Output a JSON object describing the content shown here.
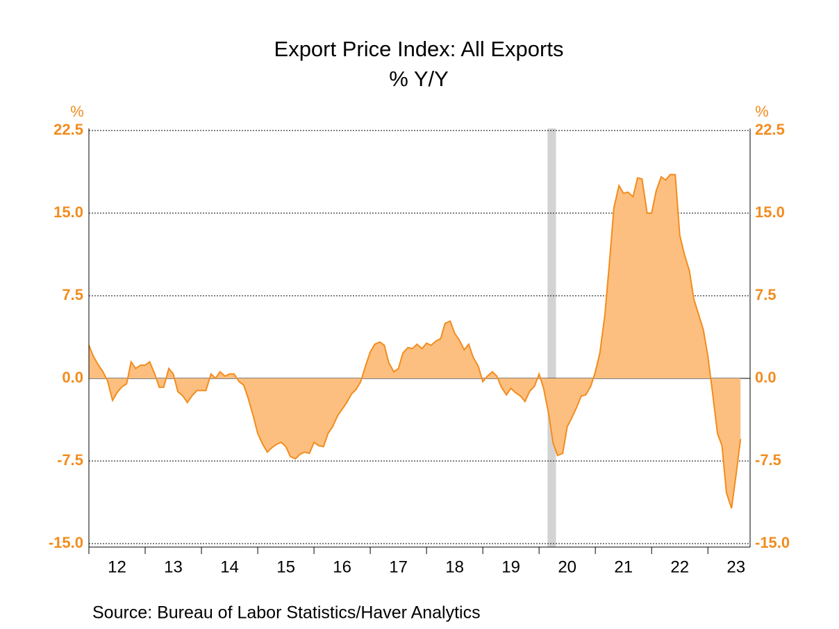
{
  "chart_data": {
    "type": "area",
    "title": "Export Price Index: All Exports",
    "subtitle": "% Y/Y",
    "y_label": "%",
    "y2_label": "%",
    "source": "Source:  Bureau of Labor Statistics/Haver Analytics",
    "x": [
      2012.0,
      2012.08,
      2012.17,
      2012.25,
      2012.33,
      2012.42,
      2012.5,
      2012.58,
      2012.67,
      2012.75,
      2012.83,
      2012.92,
      2013.0,
      2013.08,
      2013.17,
      2013.25,
      2013.33,
      2013.42,
      2013.5,
      2013.58,
      2013.67,
      2013.75,
      2013.83,
      2013.92,
      2014.0,
      2014.08,
      2014.17,
      2014.25,
      2014.33,
      2014.42,
      2014.5,
      2014.58,
      2014.67,
      2014.75,
      2014.83,
      2014.92,
      2015.0,
      2015.08,
      2015.17,
      2015.25,
      2015.33,
      2015.42,
      2015.5,
      2015.58,
      2015.67,
      2015.75,
      2015.83,
      2015.92,
      2016.0,
      2016.08,
      2016.17,
      2016.25,
      2016.33,
      2016.42,
      2016.5,
      2016.58,
      2016.67,
      2016.75,
      2016.83,
      2016.92,
      2017.0,
      2017.08,
      2017.17,
      2017.25,
      2017.33,
      2017.42,
      2017.5,
      2017.58,
      2017.67,
      2017.75,
      2017.83,
      2017.92,
      2018.0,
      2018.08,
      2018.17,
      2018.25,
      2018.33,
      2018.42,
      2018.5,
      2018.58,
      2018.67,
      2018.75,
      2018.83,
      2018.92,
      2019.0,
      2019.08,
      2019.17,
      2019.25,
      2019.33,
      2019.42,
      2019.5,
      2019.58,
      2019.67,
      2019.75,
      2019.83,
      2019.92,
      2020.0,
      2020.08,
      2020.17,
      2020.25,
      2020.33,
      2020.42,
      2020.5,
      2020.58,
      2020.67,
      2020.75,
      2020.83,
      2020.92,
      2021.0,
      2021.08,
      2021.17,
      2021.25,
      2021.33,
      2021.42,
      2021.5,
      2021.58,
      2021.67,
      2021.75,
      2021.83,
      2021.92,
      2022.0,
      2022.08,
      2022.17,
      2022.25,
      2022.33,
      2022.42,
      2022.5,
      2022.58,
      2022.67,
      2022.75,
      2022.83,
      2022.92,
      2023.0,
      2023.08,
      2023.17,
      2023.25,
      2023.33,
      2023.42,
      2023.5,
      2023.58
    ],
    "values": [
      3.0,
      2.0,
      1.2,
      0.6,
      -0.2,
      -2.0,
      -1.3,
      -0.8,
      -0.5,
      1.5,
      0.9,
      1.2,
      1.2,
      1.5,
      0.4,
      -0.8,
      -0.8,
      0.9,
      0.4,
      -1.2,
      -1.6,
      -2.2,
      -1.6,
      -1.1,
      -1.1,
      -1.1,
      0.4,
      0.0,
      0.6,
      0.2,
      0.4,
      0.4,
      -0.3,
      -0.6,
      -1.8,
      -3.4,
      -5.0,
      -5.9,
      -6.7,
      -6.3,
      -6.0,
      -5.8,
      -6.2,
      -7.1,
      -7.3,
      -6.9,
      -6.7,
      -6.8,
      -5.8,
      -6.1,
      -6.2,
      -5.0,
      -4.4,
      -3.4,
      -2.8,
      -2.2,
      -1.4,
      -1.0,
      -0.3,
      1.2,
      2.4,
      3.1,
      3.3,
      3.0,
      1.4,
      0.6,
      0.9,
      2.3,
      2.8,
      2.7,
      3.1,
      2.7,
      3.2,
      3.0,
      3.4,
      3.6,
      5.0,
      5.2,
      4.1,
      3.5,
      2.6,
      3.1,
      1.9,
      1.1,
      -0.3,
      0.2,
      0.6,
      0.2,
      -0.8,
      -1.5,
      -0.9,
      -1.3,
      -1.6,
      -2.1,
      -1.2,
      -0.7,
      0.4,
      -0.9,
      -3.2,
      -5.9,
      -7.0,
      -6.8,
      -4.4,
      -3.6,
      -2.6,
      -1.6,
      -1.5,
      -0.7,
      0.6,
      2.3,
      5.8,
      10.5,
      15.5,
      17.5,
      16.8,
      16.9,
      16.5,
      18.2,
      18.1,
      15.0,
      15.0,
      17.0,
      18.3,
      18.0,
      18.5,
      18.5,
      13.0,
      11.3,
      9.8,
      7.2,
      5.9,
      4.4,
      2.0,
      -1.2,
      -5.0,
      -6.1,
      -10.4,
      -11.8,
      -8.8,
      -5.5
    ],
    "color": "#f28c1e",
    "fill_color": "#fdbf7f",
    "shaded_periods": [
      [
        2020.15,
        2020.3
      ]
    ],
    "shade_color": "#d3d3d3",
    "xlim": [
      2012,
      2023.75
    ],
    "xticks": [
      {
        "value": 2012,
        "label": "12"
      },
      {
        "value": 2013,
        "label": "13"
      },
      {
        "value": 2014,
        "label": "14"
      },
      {
        "value": 2015,
        "label": "15"
      },
      {
        "value": 2016,
        "label": "16"
      },
      {
        "value": 2017,
        "label": "17"
      },
      {
        "value": 2018,
        "label": "18"
      },
      {
        "value": 2019,
        "label": "19"
      },
      {
        "value": 2020,
        "label": "20"
      },
      {
        "value": 2021,
        "label": "21"
      },
      {
        "value": 2022,
        "label": "22"
      },
      {
        "value": 2023,
        "label": "23"
      }
    ],
    "ylim": [
      -15,
      22.5
    ],
    "yticks": [
      22.5,
      {
        "value": 15,
        "label": "15.0"
      },
      7.5,
      {
        "value": 0,
        "label": "0.0"
      },
      -7.5,
      {
        "value": -15,
        "label": "-15.0"
      }
    ],
    "y2lim": [
      -15,
      22.5
    ],
    "y2ticks": [
      22.5,
      {
        "value": 15,
        "label": "15.0"
      },
      7.5,
      {
        "value": 0,
        "label": "0.0"
      },
      -7.5,
      {
        "value": -15,
        "label": "-15.0"
      }
    ],
    "grid": true
  }
}
